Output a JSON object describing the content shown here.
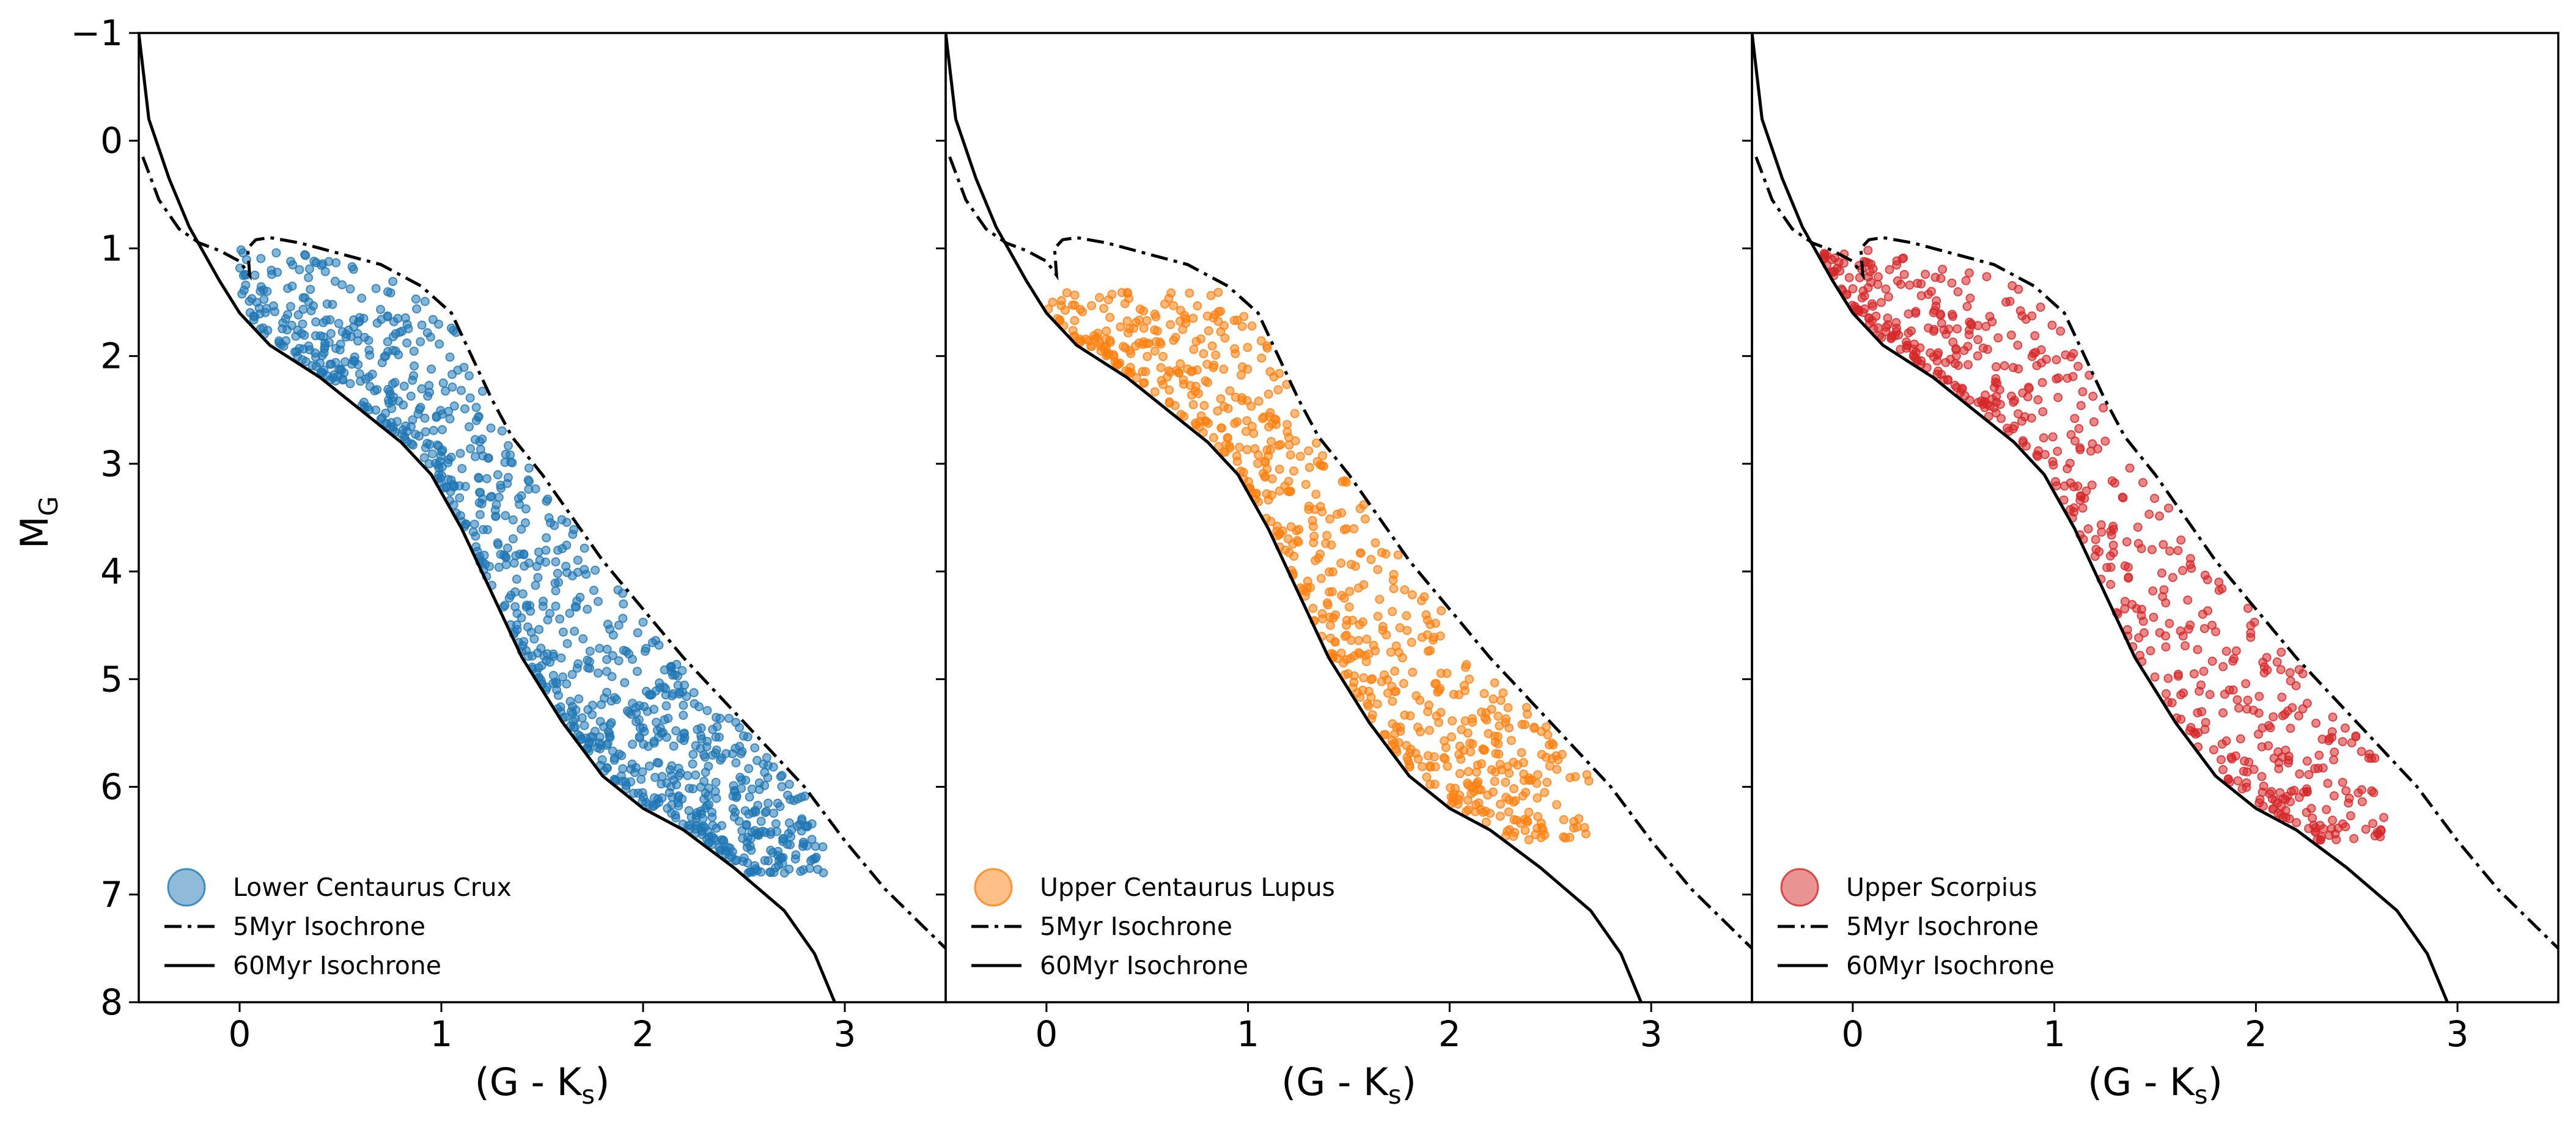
{
  "figure": {
    "ylabel_main": "M",
    "ylabel_sub": "G",
    "xlabel_main": "(G - K",
    "xlabel_sub": "s",
    "xlabel_close": ")"
  },
  "isochrones": {
    "iso60_name": "60Myr Isochrone",
    "iso5_name": "5Myr Isochrone",
    "iso60": [
      [
        -0.5,
        -1.0
      ],
      [
        -0.45,
        -0.2
      ],
      [
        -0.35,
        0.35
      ],
      [
        -0.25,
        0.8
      ],
      [
        -0.1,
        1.3
      ],
      [
        0.0,
        1.6
      ],
      [
        0.15,
        1.9
      ],
      [
        0.4,
        2.2
      ],
      [
        0.6,
        2.5
      ],
      [
        0.8,
        2.8
      ],
      [
        0.95,
        3.1
      ],
      [
        1.1,
        3.6
      ],
      [
        1.25,
        4.2
      ],
      [
        1.4,
        4.8
      ],
      [
        1.6,
        5.4
      ],
      [
        1.8,
        5.9
      ],
      [
        2.0,
        6.2
      ],
      [
        2.2,
        6.4
      ],
      [
        2.45,
        6.75
      ],
      [
        2.7,
        7.15
      ],
      [
        2.85,
        7.55
      ],
      [
        2.95,
        8.0
      ]
    ],
    "iso5": [
      [
        -0.48,
        0.15
      ],
      [
        -0.4,
        0.55
      ],
      [
        -0.3,
        0.82
      ],
      [
        -0.2,
        0.95
      ],
      [
        -0.1,
        1.02
      ],
      [
        0.0,
        1.12
      ],
      [
        0.05,
        1.25
      ],
      [
        0.04,
        1.0
      ],
      [
        0.08,
        0.92
      ],
      [
        0.15,
        0.9
      ],
      [
        0.3,
        0.95
      ],
      [
        0.5,
        1.05
      ],
      [
        0.7,
        1.15
      ],
      [
        0.9,
        1.35
      ],
      [
        1.05,
        1.6
      ],
      [
        1.15,
        2.0
      ],
      [
        1.25,
        2.4
      ],
      [
        1.35,
        2.75
      ],
      [
        1.5,
        3.1
      ],
      [
        1.65,
        3.5
      ],
      [
        1.8,
        3.9
      ],
      [
        2.0,
        4.35
      ],
      [
        2.2,
        4.8
      ],
      [
        2.5,
        5.4
      ],
      [
        2.8,
        6.0
      ],
      [
        3.0,
        6.5
      ],
      [
        3.2,
        6.95
      ],
      [
        3.5,
        7.5
      ]
    ]
  },
  "chart_data": [
    {
      "type": "scatter",
      "panel": "lcc",
      "xlim": [
        -0.5,
        3.5
      ],
      "ylim": [
        8,
        -1
      ],
      "y_inverted": true,
      "xticks": [
        0,
        1,
        2,
        3
      ],
      "yticks": [
        -1,
        0,
        1,
        2,
        3,
        4,
        5,
        6,
        7,
        8
      ],
      "xlabel": "(G - Ks)",
      "ylabel": "MG",
      "grid": false,
      "legend_placement": "lower-left",
      "series": [
        {
          "name": "Lower Centaurus Crux",
          "color": "#1f77b4",
          "count": 1100,
          "x_range": [
            -0.05,
            2.9
          ],
          "y_range": [
            1.0,
            6.8
          ]
        },
        {
          "name": "5Myr Isochrone",
          "style": "dash-dot",
          "color": "#000000"
        },
        {
          "name": "60Myr Isochrone",
          "style": "solid",
          "color": "#000000"
        }
      ]
    },
    {
      "type": "scatter",
      "panel": "ucl",
      "xlim": [
        -0.5,
        3.5
      ],
      "ylim": [
        8,
        -1
      ],
      "y_inverted": true,
      "xticks": [
        0,
        1,
        2,
        3
      ],
      "yticks": [
        -1,
        0,
        1,
        2,
        3,
        4,
        5,
        6,
        7,
        8
      ],
      "xlabel": "(G - Ks)",
      "grid": false,
      "legend_placement": "lower-left",
      "series": [
        {
          "name": "Upper Centaurus Lupus",
          "color": "#ff7f0e",
          "count": 800,
          "x_range": [
            0.0,
            2.7
          ],
          "y_range": [
            1.4,
            6.5
          ]
        },
        {
          "name": "5Myr Isochrone",
          "style": "dash-dot",
          "color": "#000000"
        },
        {
          "name": "60Myr Isochrone",
          "style": "solid",
          "color": "#000000"
        }
      ]
    },
    {
      "type": "scatter",
      "panel": "usco",
      "xlim": [
        -0.5,
        3.5
      ],
      "ylim": [
        8,
        -1
      ],
      "y_inverted": true,
      "xticks": [
        0,
        1,
        2,
        3
      ],
      "yticks": [
        -1,
        0,
        1,
        2,
        3,
        4,
        5,
        6,
        7,
        8
      ],
      "xlabel": "(G - Ks)",
      "grid": false,
      "legend_placement": "lower-left",
      "series": [
        {
          "name": "Upper Scorpius",
          "color": "#d62728",
          "count": 650,
          "x_range": [
            -0.15,
            2.65
          ],
          "y_range": [
            1.0,
            6.5
          ]
        },
        {
          "name": "5Myr Isochrone",
          "style": "dash-dot",
          "color": "#000000"
        },
        {
          "name": "60Myr Isochrone",
          "style": "solid",
          "color": "#000000"
        }
      ]
    }
  ]
}
